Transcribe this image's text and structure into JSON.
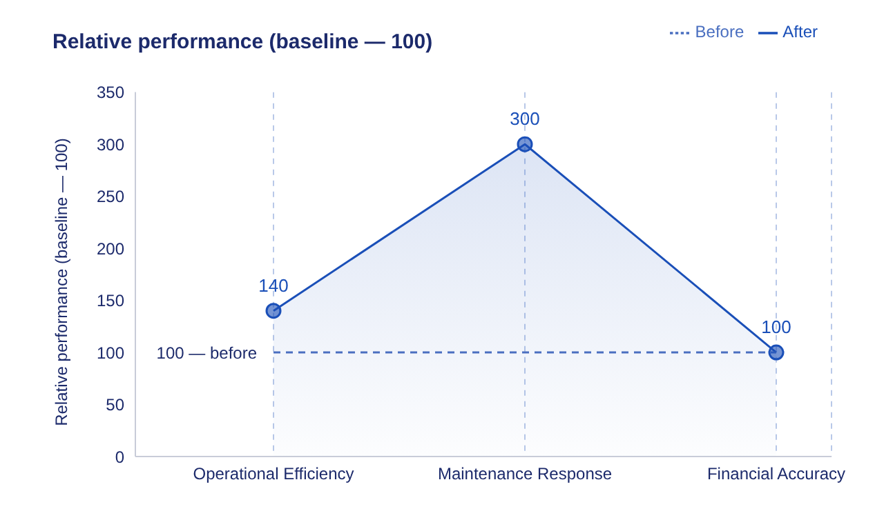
{
  "chart_data": {
    "type": "line",
    "title": "Relative performance (baseline — 100)",
    "ylabel": "Relative performance (baseline — 100)",
    "categories": [
      "Operational Efficiency",
      "Maintenance Response",
      "Financial Accuracy"
    ],
    "series": [
      {
        "name": "Before",
        "type": "line",
        "color": "#4a6fc0",
        "values": [
          100,
          100,
          100
        ],
        "line_style": "dashed",
        "marker": "none"
      },
      {
        "name": "After",
        "type": "area",
        "color": "#1a4fb8",
        "values": [
          140,
          300,
          100
        ],
        "line_style": "solid",
        "marker": "circle",
        "value_labels": [
          "140",
          "300",
          "100"
        ]
      }
    ],
    "annotations": [
      {
        "text": "100 — before",
        "x": "Operational Efficiency",
        "y": 100
      }
    ],
    "ylim": [
      0,
      350
    ],
    "yticks": [
      0,
      50,
      100,
      150,
      200,
      250,
      300,
      350
    ],
    "grid": "x",
    "legend": "top right"
  }
}
